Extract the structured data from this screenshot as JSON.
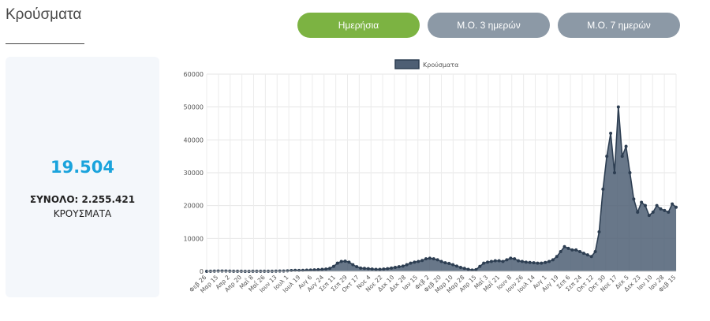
{
  "header": {
    "title": "Κρούσματα"
  },
  "tabs": [
    {
      "label": "Ημερήσια",
      "active": true
    },
    {
      "label": "Μ.Ο. 3 ημερών",
      "active": false
    },
    {
      "label": "Μ.Ο. 7 ημερών",
      "active": false
    }
  ],
  "stats": {
    "value": "19.504",
    "total": "ΣΥΝΟΛΟ: 2.255.421",
    "unit": "ΚΡΟΥΣΜΑΤΑ"
  },
  "colors": {
    "accent_green": "#7cb342",
    "tab_gray": "#8c99a6",
    "value_blue": "#1aa3dc",
    "series_fill": "#4e5f74",
    "series_line": "#2d3e52"
  },
  "chart_data": {
    "type": "area",
    "legend": [
      "Κρούσματα"
    ],
    "legend_position": "top",
    "grid": true,
    "ylim": [
      0,
      60000
    ],
    "yticks": [
      0,
      10000,
      20000,
      30000,
      40000,
      50000,
      60000
    ],
    "xticks": [
      "Φεβ 26",
      "Μαρ 15",
      "Απρ 2",
      "Απρ 20",
      "Μαΐ 8",
      "Μαΐ 26",
      "Ιουν 13",
      "Ιουλ 1",
      "Ιουλ 19",
      "Αυγ 6",
      "Αυγ 24",
      "Σεπ 11",
      "Σεπ 29",
      "Οκτ 17",
      "Νοε 4",
      "Νοε 22",
      "Δεκ 10",
      "Δεκ 28",
      "Ιαν 15",
      "Φεβ 2",
      "Φεβ 20",
      "Μαρ 10",
      "Μαρ 28",
      "Απρ 15",
      "Μαΐ 3",
      "Μαΐ 21",
      "Ιουν 8",
      "Ιουν 26",
      "Ιουλ 14",
      "Αυγ 1",
      "Αυγ 19",
      "Σεπ 6",
      "Σεπ 24",
      "Οκτ 12",
      "Οκτ 30",
      "Νοε 17",
      "Δεκ 5",
      "Δεκ 23",
      "Ιαν 10",
      "Ιαν 28",
      "Φεβ 15"
    ],
    "series": [
      {
        "name": "Κρούσματα",
        "values": [
          0,
          20,
          60,
          90,
          100,
          80,
          50,
          30,
          20,
          20,
          15,
          15,
          20,
          25,
          30,
          30,
          35,
          40,
          60,
          80,
          100,
          150,
          250,
          300,
          280,
          300,
          350,
          400,
          450,
          500,
          600,
          700,
          900,
          1500,
          2500,
          3000,
          3100,
          2800,
          2000,
          1400,
          1000,
          900,
          800,
          700,
          600,
          600,
          700,
          800,
          1000,
          1200,
          1400,
          1600,
          2000,
          2500,
          2800,
          3000,
          3300,
          3800,
          4000,
          3800,
          3500,
          3000,
          2600,
          2400,
          2000,
          1600,
          1200,
          900,
          600,
          400,
          500,
          1500,
          2500,
          2800,
          3000,
          3200,
          3200,
          3000,
          3500,
          4000,
          3800,
          3200,
          3000,
          2800,
          2700,
          2600,
          2500,
          2500,
          2700,
          3000,
          3500,
          4500,
          6000,
          7500,
          7000,
          6500,
          6500,
          6000,
          5500,
          5000,
          4500,
          6000,
          12000,
          25000,
          35000,
          42000,
          30000,
          50000,
          35000,
          38000,
          30000,
          22000,
          18000,
          21000,
          20000,
          17000,
          18000,
          20000,
          19000,
          18500,
          18000,
          20500,
          19504
        ]
      }
    ]
  }
}
